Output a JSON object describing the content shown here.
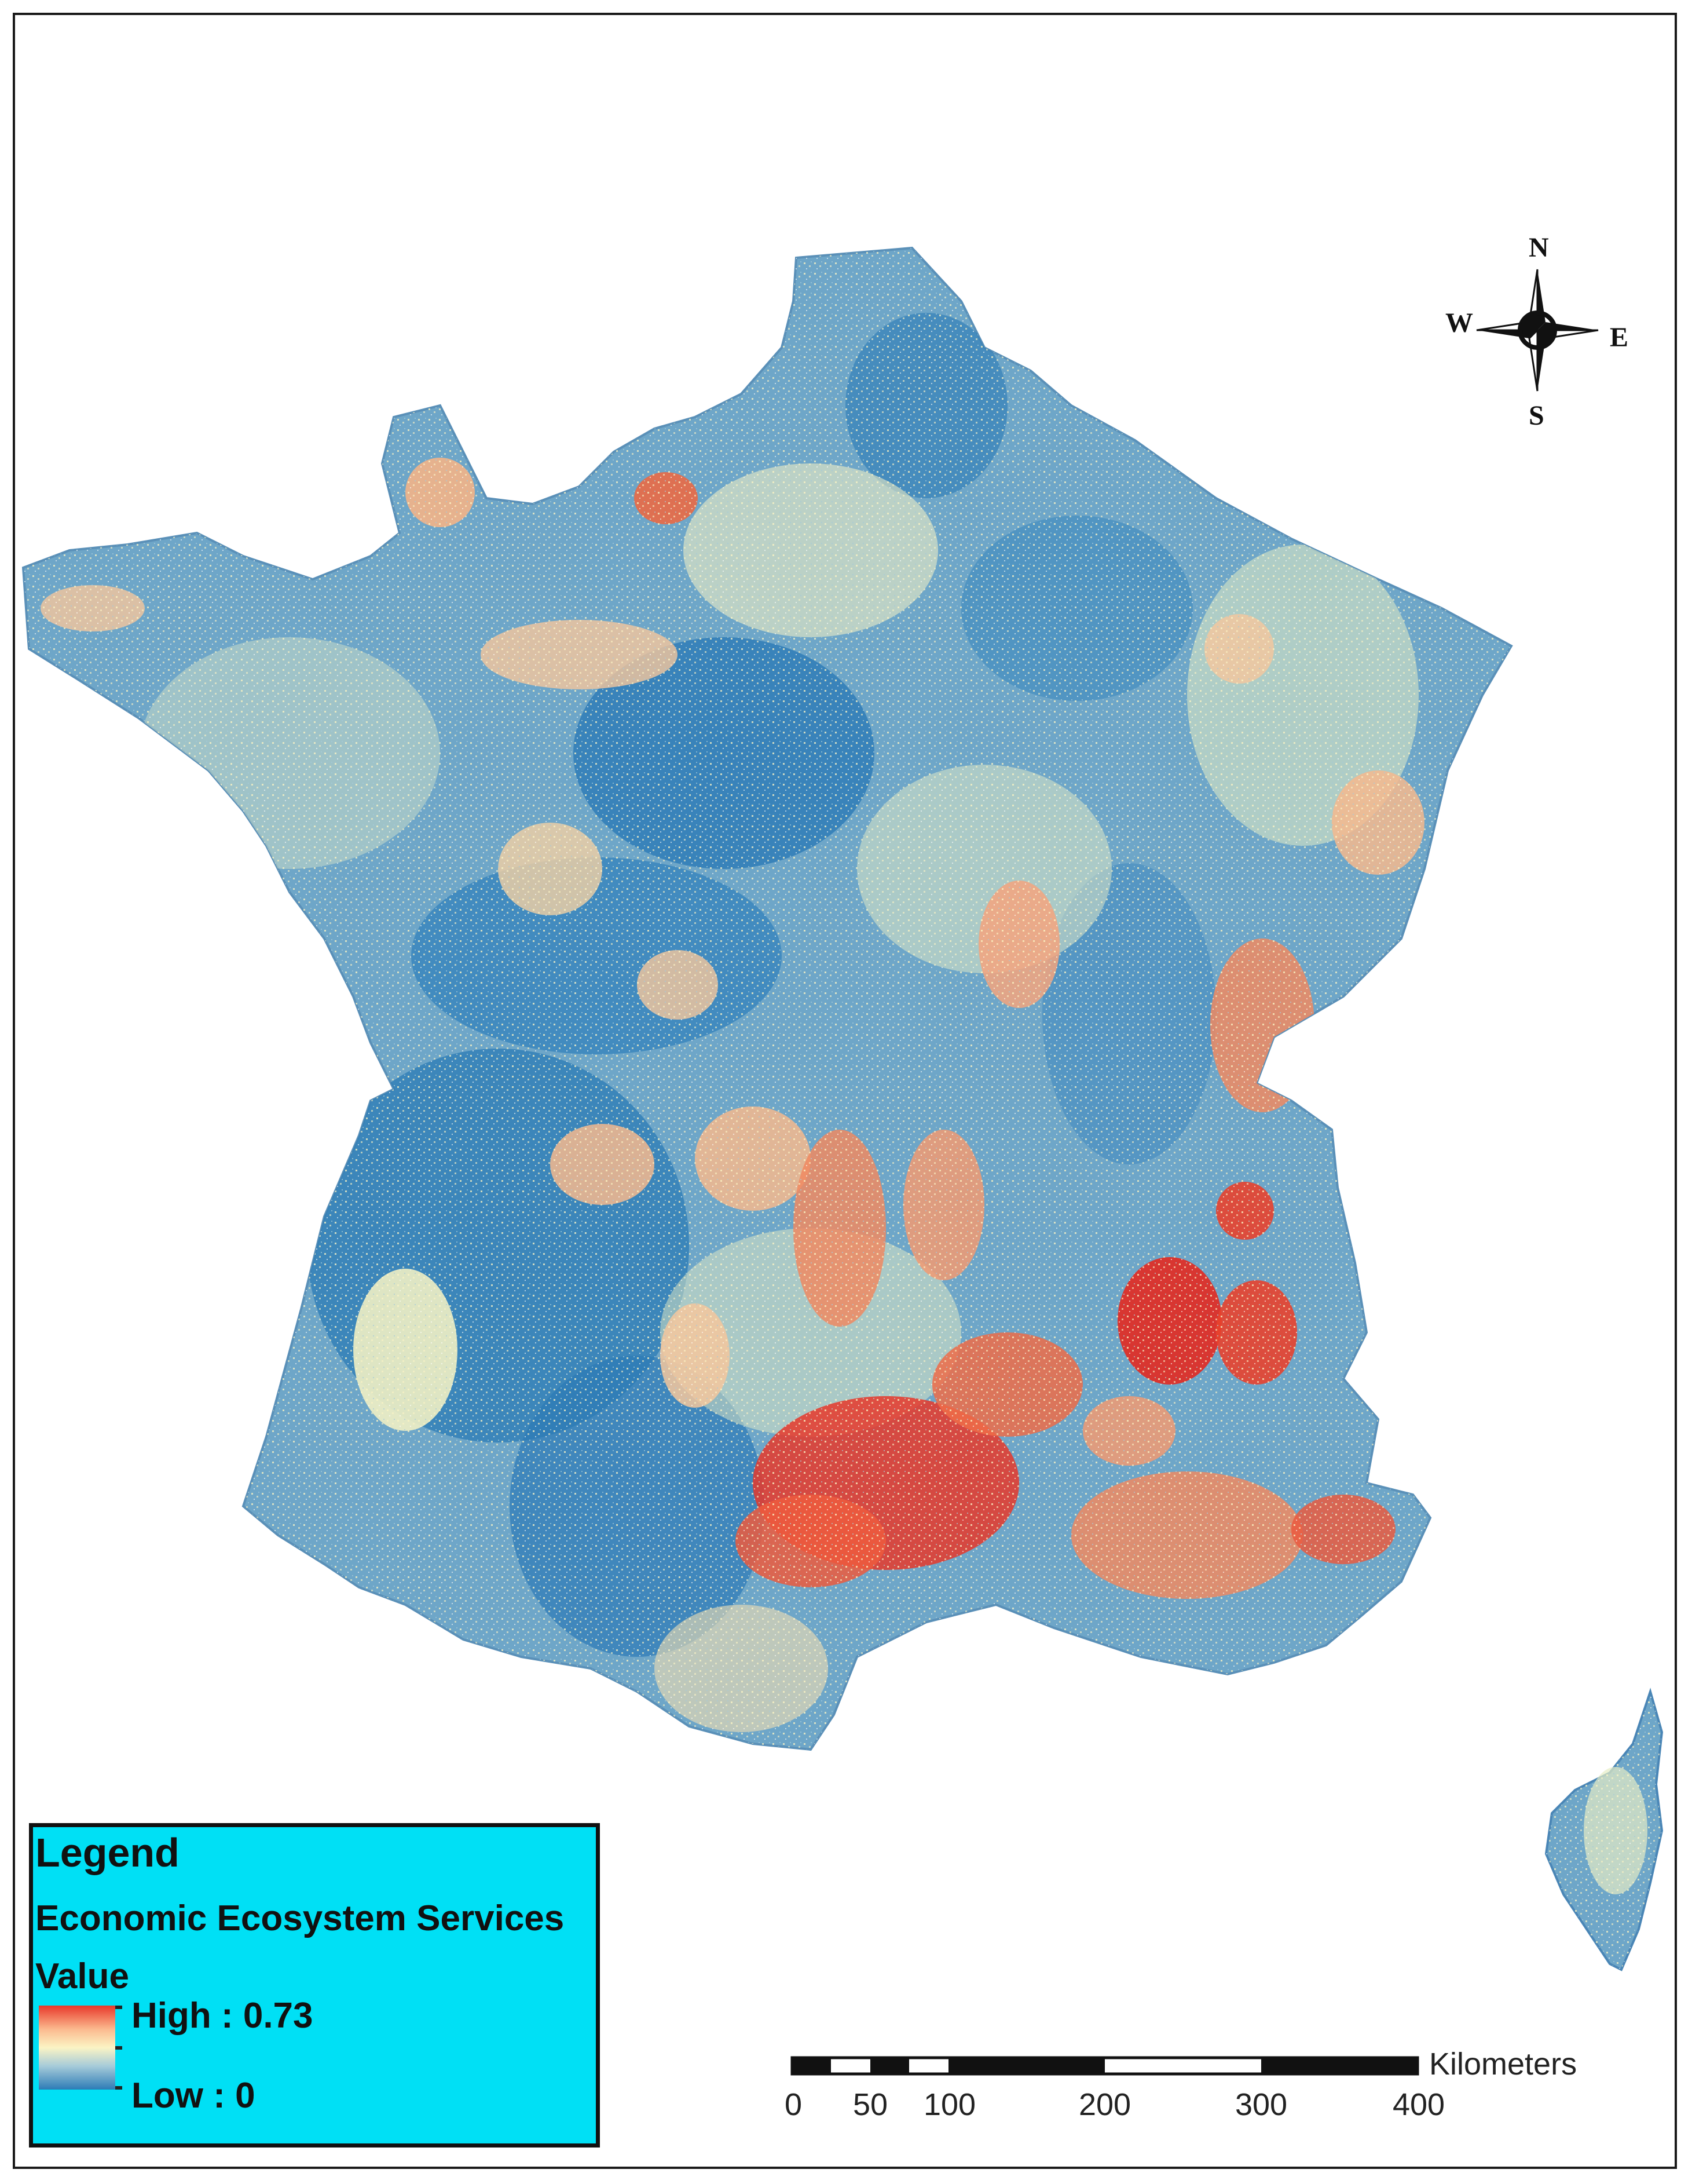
{
  "map": {
    "subject": "France",
    "colors": {
      "low": "#2c7bb6",
      "mid": "#fbf4c4",
      "high": "#e8382a",
      "frame": "#1a1a1a",
      "legend_bg": "#00e0f5"
    }
  },
  "legend": {
    "title": "Legend",
    "layer_line1": "Economic Ecosystem Services",
    "layer_line2": "Value",
    "high_label": "High : 0.73",
    "low_label": "Low : 0",
    "high_value": 0.73,
    "low_value": 0
  },
  "scale_bar": {
    "unit": "Kilometers",
    "labels": [
      "0",
      "50",
      "100",
      "200",
      "300",
      "400"
    ],
    "ticks_km": [
      0,
      25,
      50,
      75,
      100,
      200,
      300,
      400
    ]
  },
  "north_arrow": {
    "N": "N",
    "S": "S",
    "E": "E",
    "W": "W",
    "icon": "compass-rose-icon"
  }
}
